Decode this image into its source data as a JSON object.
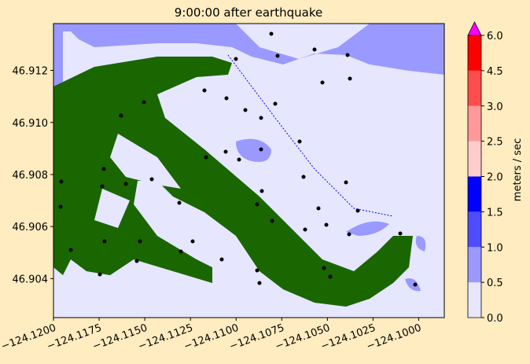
{
  "chart_data": {
    "type": "map",
    "title": "9:00:00 after earthquake",
    "xlim": [
      -124.12,
      -124.0986
    ],
    "ylim": [
      46.9025,
      46.9138
    ],
    "xticks": [
      {
        "value": -124.12,
        "label": "−124.1200"
      },
      {
        "value": -124.1175,
        "label": "−124.1175"
      },
      {
        "value": -124.115,
        "label": "−124.1150"
      },
      {
        "value": -124.1125,
        "label": "−124.1125"
      },
      {
        "value": -124.11,
        "label": "−124.1100"
      },
      {
        "value": -124.1075,
        "label": "−124.1075"
      },
      {
        "value": -124.105,
        "label": "−124.1050"
      },
      {
        "value": -124.1025,
        "label": "−124.1025"
      },
      {
        "value": -124.1,
        "label": "−124.1000"
      }
    ],
    "yticks": [
      46.904,
      46.906,
      46.908,
      {
        "value": 46.91,
        "label": "46.910"
      },
      46.912
    ],
    "colorbar": {
      "label": "meters / sec",
      "ticks": [
        {
          "value": 0,
          "label": "0.0"
        },
        0.5,
        {
          "value": 1,
          "label": "1.0"
        },
        1.5,
        {
          "value": 2,
          "label": "2.0"
        },
        2.5,
        {
          "value": 3,
          "label": "3.0"
        },
        4.5,
        {
          "value": 6,
          "label": "6.0"
        }
      ],
      "colors": [
        "#e6e6ff",
        "#9999ff",
        "#4d4dff",
        "#0000ff",
        "#ffcccc",
        "#ff9999",
        "#ff4d4d",
        "#ff0000"
      ],
      "over_color": "#ff00ff"
    }
  }
}
